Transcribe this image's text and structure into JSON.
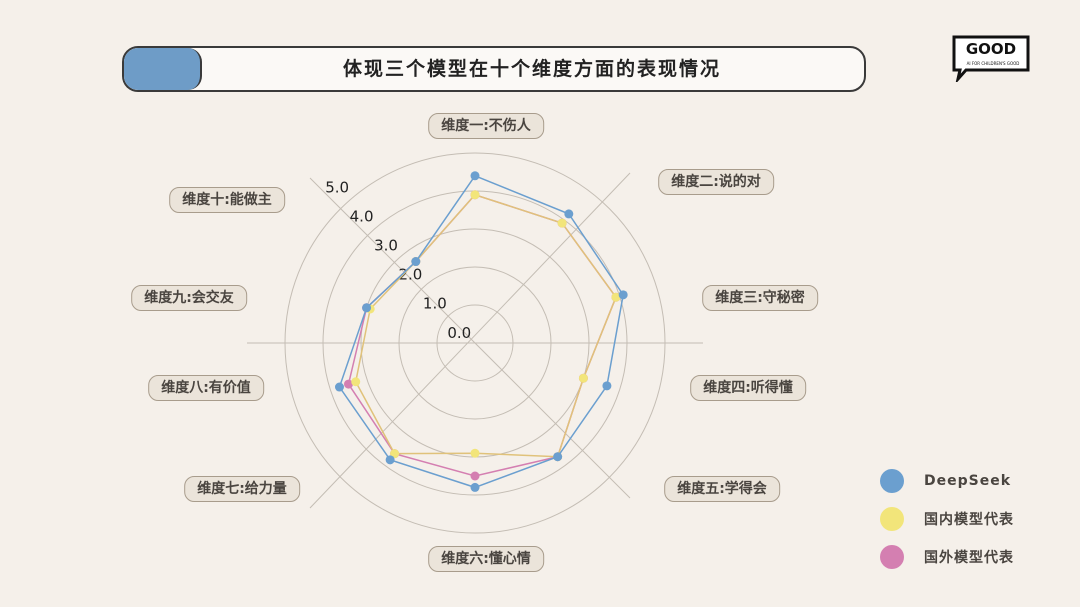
{
  "title": "体现三个模型在十个维度方面的表现情况",
  "logo": {
    "text": "GOOD",
    "subtext": "AI FOR CHILDREN'S GOOD"
  },
  "chart_data": {
    "type": "radar",
    "title": "体现三个模型在十个维度方面的表现情况",
    "categories": [
      "维度一:不伤人",
      "维度二:说的对",
      "维度三:守秘密",
      "维度四:听得懂",
      "维度五:学得会",
      "维度六:懂心情",
      "维度七:给力量",
      "维度八:有价值",
      "维度九:会交友",
      "维度十:能做主"
    ],
    "rlim": [
      0,
      5
    ],
    "ticks": [
      "0.0",
      "1.0",
      "2.0",
      "3.0",
      "4.0",
      "5.0"
    ],
    "grid": true,
    "legend_position": "bottom-right",
    "series": [
      {
        "name": "DeepSeek",
        "color": "#6b9fcf",
        "values": [
          4.4,
          4.2,
          4.1,
          3.65,
          3.7,
          3.8,
          3.8,
          3.75,
          3.0,
          2.65
        ]
      },
      {
        "name": "国内模型代表",
        "color": "#f2e57a",
        "values": [
          3.9,
          3.9,
          3.9,
          3.0,
          3.7,
          2.9,
          3.6,
          3.3,
          2.9,
          2.65
        ]
      },
      {
        "name": "国外模型代表",
        "color": "#d47fb1",
        "values": [
          3.9,
          3.9,
          3.9,
          3.0,
          3.7,
          3.5,
          3.6,
          3.5,
          3.0,
          2.65
        ]
      }
    ]
  }
}
